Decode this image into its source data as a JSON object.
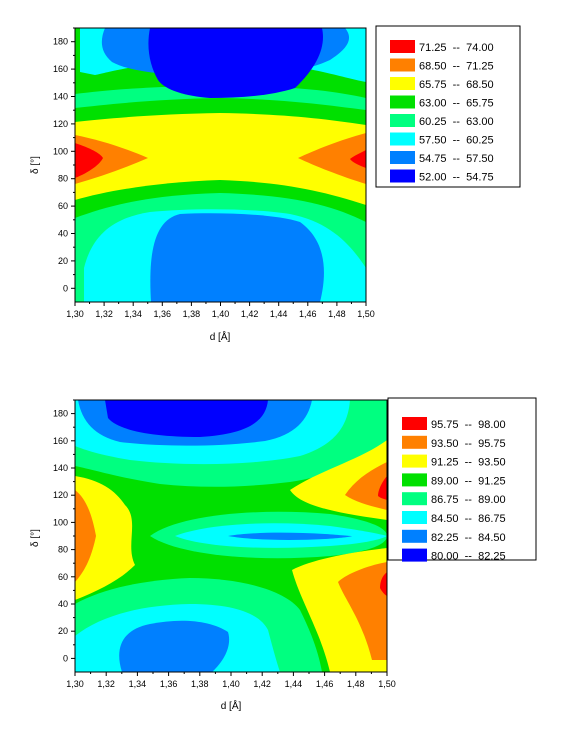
{
  "chart_data": [
    {
      "type": "contour",
      "xlabel": "d [Å]",
      "ylabel": "δ [°]",
      "xlim": [
        1.3,
        1.5
      ],
      "ylim": [
        -10,
        190
      ],
      "x_ticks": [
        "1,30",
        "1,32",
        "1,34",
        "1,36",
        "1,38",
        "1,40",
        "1,42",
        "1,44",
        "1,46",
        "1,48",
        "1,50"
      ],
      "y_ticks": [
        "0",
        "20",
        "40",
        "60",
        "80",
        "100",
        "120",
        "140",
        "160",
        "180"
      ],
      "legend_position": "right",
      "levels": [
        {
          "label": "71.25  --  74.00",
          "color": "#ff0000"
        },
        {
          "label": "68.50  --  71.25",
          "color": "#ff8000"
        },
        {
          "label": "65.75  --  68.50",
          "color": "#ffff00"
        },
        {
          "label": "63.00  --  65.75",
          "color": "#00e000"
        },
        {
          "label": "60.25  --  63.00",
          "color": "#00ff80"
        },
        {
          "label": "57.50  --  60.25",
          "color": "#00ffff"
        },
        {
          "label": "54.75  --  57.50",
          "color": "#0080ff"
        },
        {
          "label": "52.00  --  54.75",
          "color": "#0000ff"
        }
      ]
    },
    {
      "type": "contour",
      "xlabel": "d [Å]",
      "ylabel": "δ [°]",
      "xlim": [
        1.3,
        1.5
      ],
      "ylim": [
        -10,
        190
      ],
      "x_ticks": [
        "1,30",
        "1,32",
        "1,34",
        "1,36",
        "1,38",
        "1,40",
        "1,42",
        "1,44",
        "1,46",
        "1,48",
        "1,50"
      ],
      "y_ticks": [
        "0",
        "20",
        "40",
        "60",
        "80",
        "100",
        "120",
        "140",
        "160",
        "180"
      ],
      "legend_position": "right",
      "levels": [
        {
          "label": "95.75  --  98.00",
          "color": "#ff0000"
        },
        {
          "label": "93.50  --  95.75",
          "color": "#ff8000"
        },
        {
          "label": "91.25  --  93.50",
          "color": "#ffff00"
        },
        {
          "label": "89.00  --  91.25",
          "color": "#00e000"
        },
        {
          "label": "86.75  --  89.00",
          "color": "#00ff80"
        },
        {
          "label": "84.50  --  86.75",
          "color": "#00ffff"
        },
        {
          "label": "82.25  --  84.50",
          "color": "#0080ff"
        },
        {
          "label": "80.00  --  82.25",
          "color": "#0000ff"
        }
      ]
    }
  ]
}
